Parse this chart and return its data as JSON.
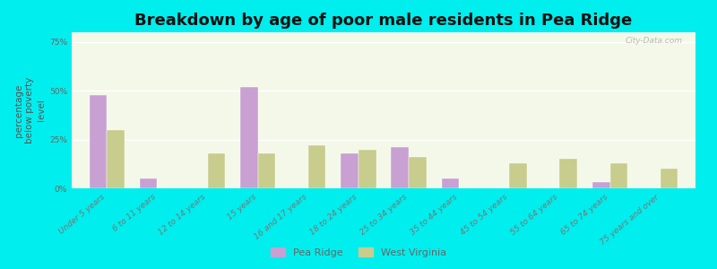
{
  "title": "Breakdown by age of poor male residents in Pea Ridge",
  "categories": [
    "Under 5 years",
    "6 to 11 years",
    "12 to 14 years",
    "15 years",
    "16 and 17 years",
    "18 to 24 years",
    "25 to 34 years",
    "35 to 44 years",
    "45 to 54 years",
    "55 to 64 years",
    "65 to 74 years",
    "75 years and over"
  ],
  "pea_ridge": [
    48,
    5,
    0,
    52,
    0,
    18,
    21,
    5,
    0,
    0,
    3,
    0
  ],
  "west_virginia": [
    30,
    0,
    18,
    18,
    22,
    20,
    16,
    0,
    13,
    15,
    13,
    10
  ],
  "pea_ridge_color": "#c8a0d2",
  "west_virginia_color": "#c8cc8c",
  "background_color": "#00eeee",
  "plot_bg_color": "#f4f8e8",
  "ylabel": "percentage\nbelow poverty\nlevel",
  "ylim": [
    0,
    80
  ],
  "yticks": [
    0,
    25,
    50,
    75
  ],
  "ytick_labels": [
    "0%",
    "25%",
    "50%",
    "75%"
  ],
  "bar_width": 0.35,
  "title_fontsize": 13,
  "axis_label_fontsize": 7.5,
  "tick_fontsize": 6.5,
  "legend_labels": [
    "Pea Ridge",
    "West Virginia"
  ],
  "watermark": "City-Data.com"
}
